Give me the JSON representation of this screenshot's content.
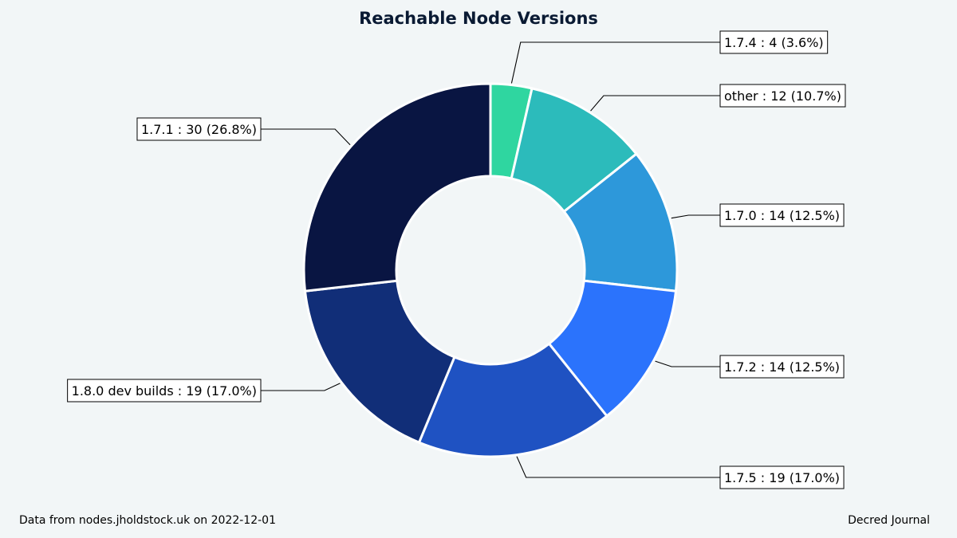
{
  "footer": {
    "source": "Data from nodes.jholdstock.uk on 2022-12-01",
    "credit": "Decred Journal"
  },
  "chart_data": {
    "type": "pie",
    "style": "donut",
    "title": "Reachable Node Versions",
    "start_angle_deg": 0,
    "direction": "clockwise",
    "total": 112,
    "legend": "none (labels with leader lines)",
    "slices": [
      {
        "label": "1.7.4",
        "value": 4,
        "percent": "3.6%",
        "color": "#2fd6a0",
        "text": "1.7.4 : 4 (3.6%)"
      },
      {
        "label": "other",
        "value": 12,
        "percent": "10.7%",
        "color": "#2cbbbb",
        "text": "other : 12 (10.7%)"
      },
      {
        "label": "1.7.0",
        "value": 14,
        "percent": "12.5%",
        "color": "#2d98da",
        "text": "1.7.0 : 14 (12.5%)"
      },
      {
        "label": "1.7.2",
        "value": 14,
        "percent": "12.5%",
        "color": "#2b73fc",
        "text": "1.7.2 : 14 (12.5%)"
      },
      {
        "label": "1.7.5",
        "value": 19,
        "percent": "17.0%",
        "color": "#1f52c2",
        "text": "1.7.5 : 19 (17.0%)"
      },
      {
        "label": "1.8.0 dev builds",
        "value": 19,
        "percent": "17.0%",
        "color": "#112e78",
        "text": "1.8.0 dev builds : 19 (17.0%)"
      },
      {
        "label": "1.7.1",
        "value": 30,
        "percent": "26.8%",
        "color": "#091542",
        "text": "1.7.1 : 30 (26.8%)"
      }
    ]
  }
}
